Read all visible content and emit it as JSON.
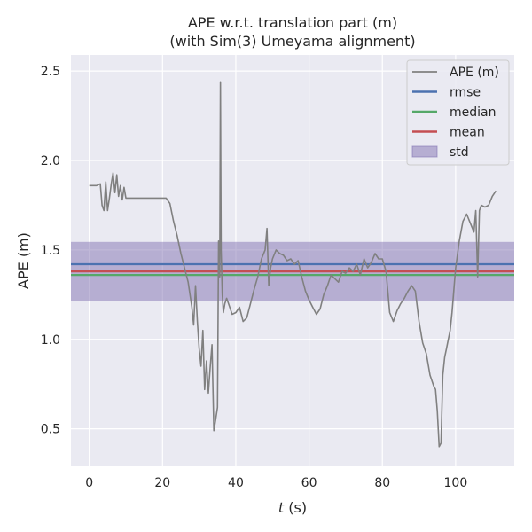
{
  "chart_data": {
    "type": "line",
    "title": "APE w.r.t. translation part (m)",
    "subtitle": "(with Sim(3) Umeyama alignment)",
    "xlabel_var": "t",
    "xlabel_unit": " (s)",
    "ylabel": "APE (m)",
    "xlim": [
      -5,
      116
    ],
    "ylim": [
      0.29,
      2.59
    ],
    "xticks": [
      0,
      20,
      40,
      60,
      80,
      100
    ],
    "yticks": [
      0.5,
      1.0,
      1.5,
      2.0,
      2.5
    ],
    "xtick_labels": [
      "0",
      "20",
      "40",
      "60",
      "80",
      "100"
    ],
    "ytick_labels": [
      "0.5",
      "1.0",
      "1.5",
      "2.0",
      "2.5"
    ],
    "grid": true,
    "legend_position": "top-right",
    "stats": {
      "rmse": 1.42,
      "median": 1.36,
      "mean": 1.38,
      "std_low": 1.215,
      "std_high": 1.545
    },
    "series": [
      {
        "name": "APE (m)",
        "color": "#808080",
        "x": [
          0,
          2,
          3,
          3.5,
          4,
          4.5,
          5,
          5.5,
          6,
          6.5,
          7,
          7.5,
          8,
          8.5,
          9,
          9.5,
          10,
          12,
          15,
          18,
          20,
          21,
          22,
          23,
          24,
          25,
          26,
          27,
          28,
          28.5,
          29,
          29.5,
          30,
          30.5,
          31,
          31.5,
          32,
          32.5,
          33,
          33.5,
          34,
          34.5,
          35,
          35.3,
          35.6,
          35.8,
          36,
          36.3,
          36.6,
          37,
          37.5,
          38,
          38.5,
          39,
          40,
          41,
          42,
          43,
          44,
          45,
          46,
          47,
          48,
          48.5,
          49,
          49.5,
          50,
          51,
          52,
          53,
          54,
          55,
          56,
          57,
          58,
          59,
          60,
          61,
          62,
          63,
          64,
          65,
          66,
          67,
          68,
          69,
          70,
          71,
          72,
          73,
          74,
          75,
          76,
          77,
          78,
          79,
          80,
          81,
          82,
          83,
          84,
          85,
          86,
          87,
          88,
          89,
          90,
          91,
          92,
          93,
          94,
          94.5,
          95,
          95.5,
          96,
          96.5,
          97,
          97.5,
          98,
          98.5,
          99,
          100,
          101,
          102,
          103,
          104,
          105,
          105.5,
          106,
          106.5,
          107,
          108,
          109,
          110,
          111
        ],
        "values": [
          1.86,
          1.86,
          1.87,
          1.75,
          1.72,
          1.88,
          1.72,
          1.79,
          1.87,
          1.93,
          1.82,
          1.92,
          1.8,
          1.86,
          1.78,
          1.85,
          1.79,
          1.79,
          1.79,
          1.79,
          1.79,
          1.79,
          1.76,
          1.66,
          1.58,
          1.48,
          1.4,
          1.32,
          1.18,
          1.08,
          1.3,
          1.1,
          0.95,
          0.85,
          1.05,
          0.72,
          0.88,
          0.7,
          0.84,
          0.97,
          0.49,
          0.55,
          0.62,
          1.55,
          1.35,
          2.44,
          1.5,
          1.25,
          1.15,
          1.2,
          1.23,
          1.2,
          1.17,
          1.14,
          1.15,
          1.18,
          1.1,
          1.12,
          1.2,
          1.28,
          1.35,
          1.45,
          1.5,
          1.62,
          1.3,
          1.4,
          1.45,
          1.5,
          1.48,
          1.47,
          1.44,
          1.45,
          1.42,
          1.44,
          1.35,
          1.27,
          1.22,
          1.18,
          1.14,
          1.17,
          1.25,
          1.3,
          1.36,
          1.34,
          1.32,
          1.38,
          1.37,
          1.4,
          1.38,
          1.42,
          1.36,
          1.45,
          1.4,
          1.43,
          1.48,
          1.45,
          1.45,
          1.38,
          1.15,
          1.1,
          1.16,
          1.2,
          1.23,
          1.27,
          1.3,
          1.27,
          1.1,
          0.98,
          0.92,
          0.8,
          0.74,
          0.72,
          0.6,
          0.4,
          0.42,
          0.8,
          0.9,
          0.95,
          1.0,
          1.05,
          1.15,
          1.4,
          1.55,
          1.66,
          1.7,
          1.65,
          1.6,
          1.72,
          1.35,
          1.72,
          1.75,
          1.74,
          1.75,
          1.8,
          1.83
        ]
      }
    ],
    "legend": [
      {
        "label": "APE (m)",
        "kind": "line",
        "color": "#808080"
      },
      {
        "label": "rmse",
        "kind": "line",
        "color": "#4c72b0"
      },
      {
        "label": "median",
        "kind": "line",
        "color": "#55a868"
      },
      {
        "label": "mean",
        "kind": "line",
        "color": "#c44e52"
      },
      {
        "label": "std",
        "kind": "patch",
        "color": "#8172b2"
      }
    ]
  }
}
